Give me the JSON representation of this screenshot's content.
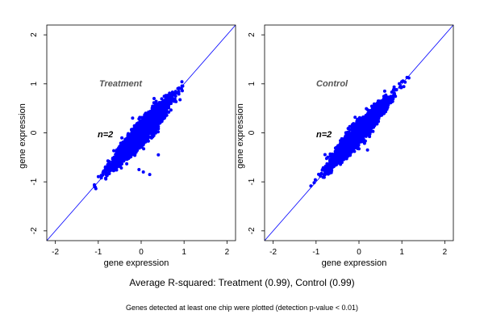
{
  "chart_data": [
    {
      "type": "scatter",
      "title": "Treatment",
      "annotation": "n=2",
      "xlabel": "gene expression",
      "ylabel": "gene expression",
      "xlim": [
        -2.2,
        2.2
      ],
      "ylim": [
        -2.2,
        2.2
      ],
      "xticks": [
        "-2",
        "-1",
        "0",
        "1",
        "2"
      ],
      "yticks": [
        "-2",
        "-1",
        "0",
        "1",
        "2"
      ],
      "reference_line": "y = x",
      "point_color": "#0000ff",
      "line_color": "#0000ff",
      "cloud": {
        "x_range": [
          -1.1,
          1.15
        ],
        "y_range": [
          -1.15,
          1.2
        ],
        "spread_near_zero": 0.12,
        "r_squared": 0.99
      },
      "outliers": [
        {
          "x": -0.05,
          "y": -0.75
        },
        {
          "x": 0.05,
          "y": -0.8
        },
        {
          "x": 0.2,
          "y": -0.85
        },
        {
          "x": 0.4,
          "y": -0.45
        },
        {
          "x": -0.2,
          "y": 0.3
        },
        {
          "x": 0.3,
          "y": 0.7
        }
      ]
    },
    {
      "type": "scatter",
      "title": "Control",
      "annotation": "n=2",
      "xlabel": "gene expression",
      "ylabel": "gene expression",
      "xlim": [
        -2.2,
        2.2
      ],
      "ylim": [
        -2.2,
        2.2
      ],
      "xticks": [
        "-2",
        "-1",
        "0",
        "1",
        "2"
      ],
      "yticks": [
        "-2",
        "-1",
        "0",
        "1",
        "2"
      ],
      "reference_line": "y = x",
      "point_color": "#0000ff",
      "line_color": "#0000ff",
      "cloud": {
        "x_range": [
          -1.1,
          1.15
        ],
        "y_range": [
          -1.15,
          1.2
        ],
        "spread_near_zero": 0.11,
        "r_squared": 0.99
      },
      "outliers": [
        {
          "x": 0.45,
          "y": 0.65
        },
        {
          "x": 0.6,
          "y": 0.85
        },
        {
          "x": 0.2,
          "y": -0.35
        }
      ]
    }
  ],
  "caption": {
    "summary": "Average R-squared: Treatment (0.99), Control (0.99)",
    "footnote": "Genes detected at least one chip were plotted (detection p-value < 0.01)"
  }
}
